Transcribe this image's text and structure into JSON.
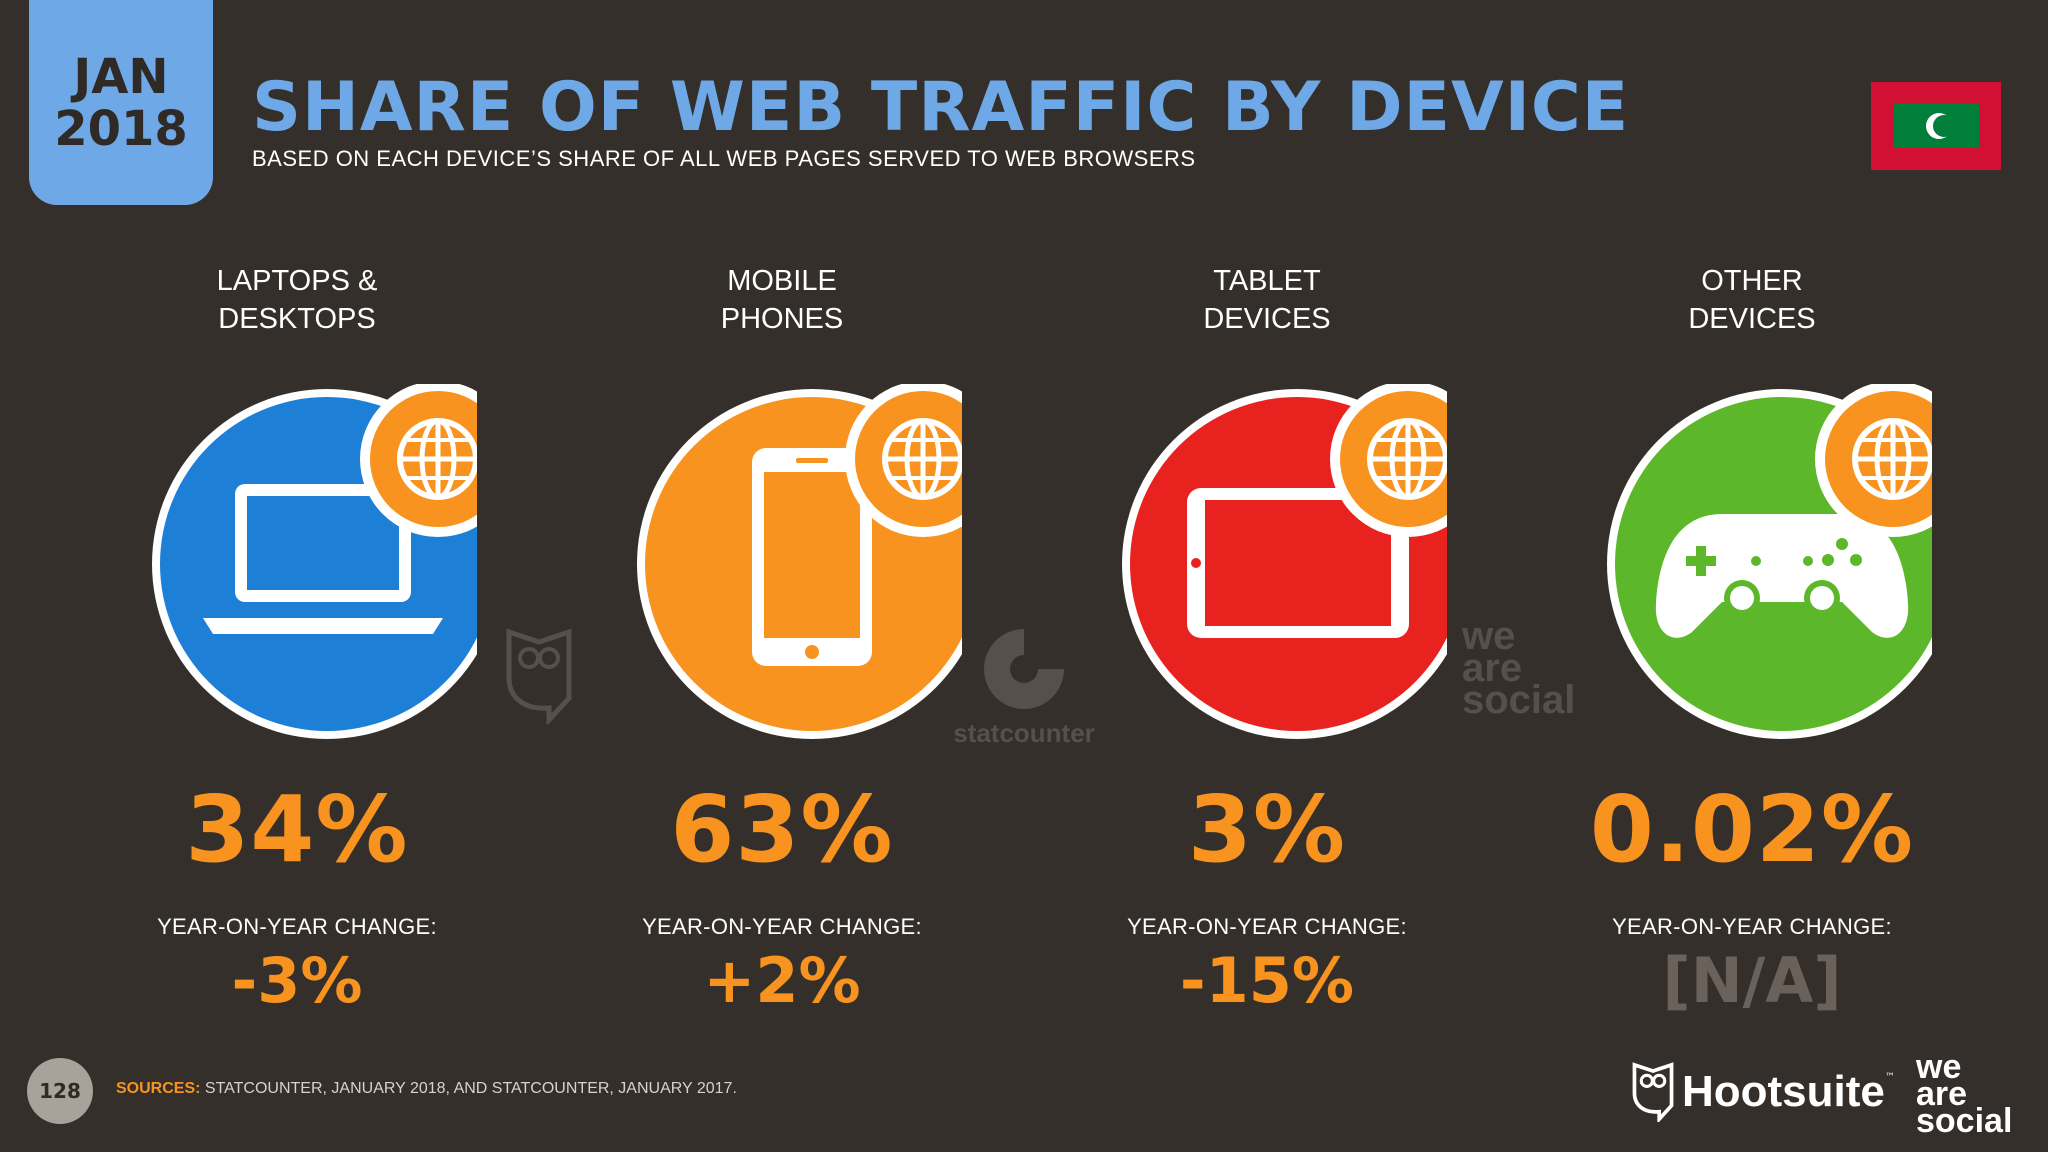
{
  "header": {
    "month": "JAN",
    "year": "2018",
    "title": "SHARE OF WEB TRAFFIC BY DEVICE",
    "subtitle": "BASED ON EACH DEVICE’S SHARE OF ALL WEB PAGES SERVED TO WEB BROWSERS",
    "flag_icon": "maldives-flag-icon"
  },
  "devices": [
    {
      "label_line1": "LAPTOPS &",
      "label_line2": "DESKTOPS",
      "value": "34%",
      "yoy_label": "YEAR-ON-YEAR CHANGE:",
      "yoy_value": "-3%",
      "color": "#1e7fd6",
      "icon": "laptop-icon"
    },
    {
      "label_line1": "MOBILE",
      "label_line2": "PHONES",
      "value": "63%",
      "yoy_label": "YEAR-ON-YEAR CHANGE:",
      "yoy_value": "+2%",
      "color": "#f7931e",
      "icon": "mobile-phone-icon"
    },
    {
      "label_line1": "TABLET",
      "label_line2": "DEVICES",
      "value": "3%",
      "yoy_label": "YEAR-ON-YEAR CHANGE:",
      "yoy_value": "-15%",
      "color": "#e8221f",
      "icon": "tablet-icon"
    },
    {
      "label_line1": "OTHER",
      "label_line2": "DEVICES",
      "value": "0.02%",
      "yoy_label": "YEAR-ON-YEAR CHANGE:",
      "yoy_value": "[N/A]",
      "color": "#5cb82a",
      "icon": "game-controller-icon"
    }
  ],
  "watermarks": {
    "statcounter": "statcounter",
    "we": "we",
    "are": "are",
    "social": "social"
  },
  "footer": {
    "page_number": "128",
    "sources_label": "SOURCES:",
    "sources_text": " STATCOUNTER, JANUARY 2018, AND STATCOUNTER, JANUARY 2017.",
    "hootsuite": "Hootsuite",
    "hootsuite_tm": "™",
    "was_we": "we",
    "was_are": "are",
    "was_social": "social"
  },
  "colors": {
    "background": "#342f2a",
    "accent_blue": "#6fa8e6",
    "accent_orange": "#f7931e",
    "na_grey": "#6a625a"
  }
}
